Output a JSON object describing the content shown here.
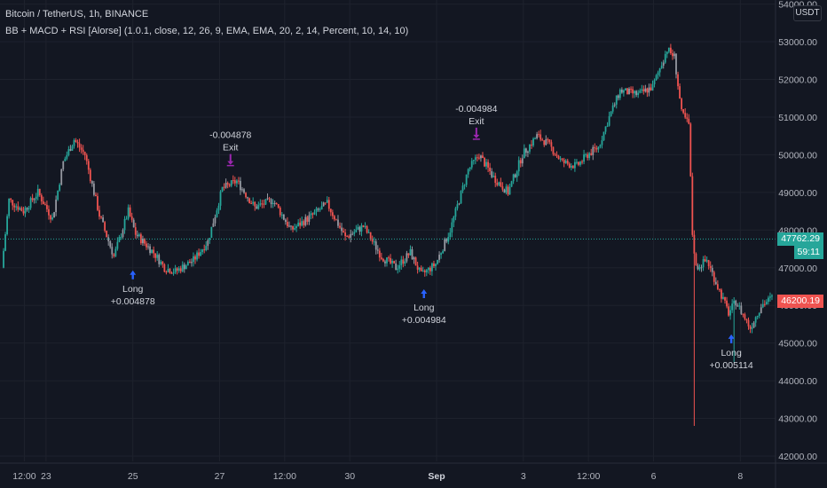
{
  "header": {
    "symbol_line": "Bitcoin / TetherUS, 1h, BINANCE",
    "indicator_line": "BB + MACD + RSI [Alorse] (1.0.1, close, 12, 26, 9, EMA, EMA, 20, 2, 14, Percent, 10, 14, 10)"
  },
  "currency": "USDT",
  "price_tags": {
    "current_price": "47762.29",
    "countdown": "59:11",
    "last_price": "46200.19"
  },
  "colors": {
    "background": "#131722",
    "up": "#26a69a",
    "down": "#ef5350",
    "neutral_candle": "#9598a1",
    "grid": "#1e222d",
    "axis_text": "#b2b5be",
    "long_marker": "#2962ff",
    "exit_marker": "#9c27b0",
    "price_line": "#26a69a"
  },
  "chart_data": {
    "type": "candlestick",
    "title": "Bitcoin / TetherUS, 1h, BINANCE",
    "y_ticks": [
      "54000.00",
      "53000.00",
      "52000.00",
      "51000.00",
      "50000.00",
      "49000.00",
      "48000.00",
      "47000.00",
      "46000.00",
      "45000.00",
      "44000.00",
      "43000.00",
      "42000.00"
    ],
    "ylim": [
      41800,
      54200
    ],
    "x_ticks": [
      "12:00",
      "23",
      "25",
      "27",
      "12:00",
      "30",
      "Sep",
      "3",
      "12:00",
      "6",
      "8"
    ],
    "x_tick_hours": [
      12,
      24,
      72,
      120,
      156,
      192,
      240,
      288,
      324,
      360,
      408
    ],
    "x_range_hours": [
      0,
      426
    ],
    "price_path": [
      [
        0,
        47000
      ],
      [
        4,
        48800
      ],
      [
        12,
        48500
      ],
      [
        20,
        49000
      ],
      [
        28,
        48300
      ],
      [
        34,
        49800
      ],
      [
        40,
        50400
      ],
      [
        46,
        50000
      ],
      [
        54,
        48400
      ],
      [
        62,
        47300
      ],
      [
        70,
        48500
      ],
      [
        74,
        47900
      ],
      [
        84,
        47400
      ],
      [
        90,
        47000
      ],
      [
        96,
        46900
      ],
      [
        106,
        47200
      ],
      [
        114,
        47700
      ],
      [
        122,
        49100
      ],
      [
        130,
        49300
      ],
      [
        140,
        48600
      ],
      [
        150,
        48800
      ],
      [
        160,
        48000
      ],
      [
        172,
        48400
      ],
      [
        180,
        48700
      ],
      [
        190,
        47800
      ],
      [
        200,
        48100
      ],
      [
        210,
        47300
      ],
      [
        218,
        47000
      ],
      [
        226,
        47400
      ],
      [
        232,
        46800
      ],
      [
        240,
        47100
      ],
      [
        248,
        48000
      ],
      [
        258,
        49600
      ],
      [
        264,
        50000
      ],
      [
        272,
        49400
      ],
      [
        280,
        49000
      ],
      [
        288,
        50000
      ],
      [
        296,
        50500
      ],
      [
        302,
        50300
      ],
      [
        310,
        49800
      ],
      [
        318,
        49700
      ],
      [
        324,
        50000
      ],
      [
        330,
        50200
      ],
      [
        336,
        51000
      ],
      [
        342,
        51700
      ],
      [
        352,
        51600
      ],
      [
        360,
        51800
      ],
      [
        368,
        52800
      ],
      [
        372,
        52600
      ],
      [
        376,
        51100
      ],
      [
        380,
        50800
      ],
      [
        382,
        47900
      ],
      [
        384,
        47000
      ],
      [
        390,
        47200
      ],
      [
        396,
        46500
      ],
      [
        402,
        45800
      ],
      [
        406,
        46100
      ],
      [
        414,
        45400
      ],
      [
        420,
        46000
      ],
      [
        426,
        46200
      ]
    ],
    "wick_extremes": [
      {
        "hour": 382,
        "low": 42800
      },
      {
        "hour": 404,
        "low": 44500
      }
    ],
    "trades": [
      {
        "type": "long",
        "hour": 72,
        "price": 47000,
        "label": "Long",
        "value": "+0.004878"
      },
      {
        "type": "exit",
        "hour": 126,
        "price": 49500,
        "label": "Exit",
        "value": "-0.004878"
      },
      {
        "type": "long",
        "hour": 233,
        "price": 46500,
        "label": "Long",
        "value": "+0.004984"
      },
      {
        "type": "exit",
        "hour": 262,
        "price": 50200,
        "label": "Exit",
        "value": "-0.004984"
      },
      {
        "type": "long",
        "hour": 403,
        "price": 45300,
        "label": "Long",
        "value": "+0.005114"
      }
    ],
    "current_price": 47762.29,
    "last_price": 46200.19,
    "grid": true
  }
}
